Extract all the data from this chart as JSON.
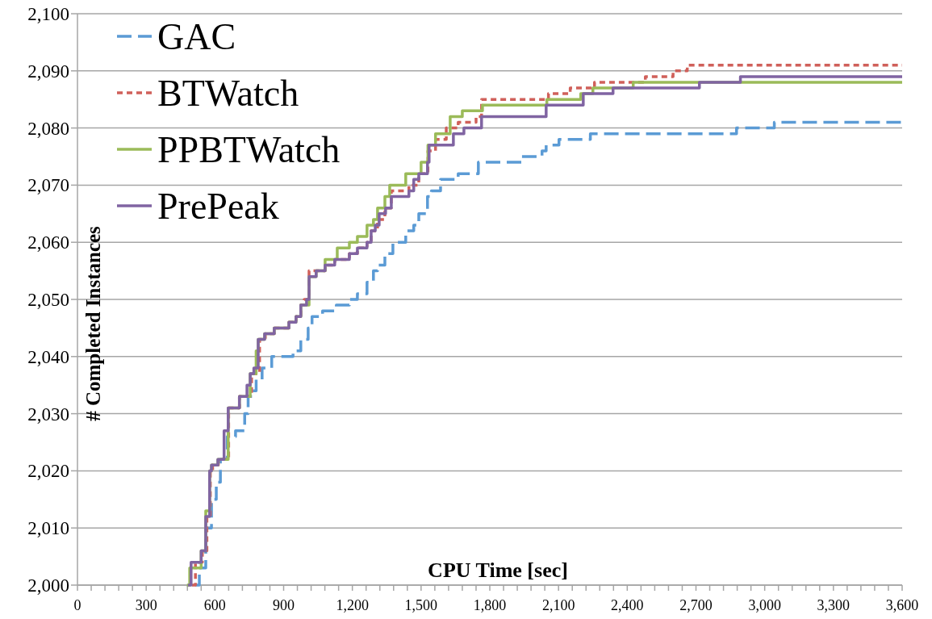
{
  "chart_data": {
    "type": "step",
    "xlabel": "CPU Time [sec]",
    "ylabel": "# Completed Instances",
    "xlim": [
      0,
      3600
    ],
    "ylim": [
      2000,
      2100
    ],
    "xticks": [
      {
        "value": 0,
        "label": "0"
      },
      {
        "value": 60,
        "label": null
      },
      {
        "value": 120,
        "label": null
      },
      {
        "value": 180,
        "label": null
      },
      {
        "value": 240,
        "label": null
      },
      {
        "value": 300,
        "label": "300"
      },
      {
        "value": 360,
        "label": null
      },
      {
        "value": 420,
        "label": null
      },
      {
        "value": 480,
        "label": null
      },
      {
        "value": 540,
        "label": null
      },
      {
        "value": 600,
        "label": "600"
      },
      {
        "value": 660,
        "label": null
      },
      {
        "value": 720,
        "label": null
      },
      {
        "value": 780,
        "label": null
      },
      {
        "value": 840,
        "label": null
      },
      {
        "value": 900,
        "label": "900"
      },
      {
        "value": 960,
        "label": null
      },
      {
        "value": 1020,
        "label": null
      },
      {
        "value": 1080,
        "label": null
      },
      {
        "value": 1140,
        "label": null
      },
      {
        "value": 1200,
        "label": "1,200"
      },
      {
        "value": 1260,
        "label": null
      },
      {
        "value": 1320,
        "label": null
      },
      {
        "value": 1380,
        "label": null
      },
      {
        "value": 1440,
        "label": null
      },
      {
        "value": 1500,
        "label": "1,500"
      },
      {
        "value": 1560,
        "label": null
      },
      {
        "value": 1620,
        "label": null
      },
      {
        "value": 1680,
        "label": null
      },
      {
        "value": 1740,
        "label": null
      },
      {
        "value": 1800,
        "label": "1,800"
      },
      {
        "value": 1860,
        "label": null
      },
      {
        "value": 1920,
        "label": null
      },
      {
        "value": 1980,
        "label": null
      },
      {
        "value": 2040,
        "label": null
      },
      {
        "value": 2100,
        "label": "2,100"
      },
      {
        "value": 2160,
        "label": null
      },
      {
        "value": 2220,
        "label": null
      },
      {
        "value": 2280,
        "label": null
      },
      {
        "value": 2340,
        "label": null
      },
      {
        "value": 2400,
        "label": "2,400"
      },
      {
        "value": 2460,
        "label": null
      },
      {
        "value": 2520,
        "label": null
      },
      {
        "value": 2580,
        "label": null
      },
      {
        "value": 2640,
        "label": null
      },
      {
        "value": 2700,
        "label": "2,700"
      },
      {
        "value": 2760,
        "label": null
      },
      {
        "value": 2820,
        "label": null
      },
      {
        "value": 2880,
        "label": null
      },
      {
        "value": 2940,
        "label": null
      },
      {
        "value": 3000,
        "label": "3,000"
      },
      {
        "value": 3060,
        "label": null
      },
      {
        "value": 3120,
        "label": null
      },
      {
        "value": 3180,
        "label": null
      },
      {
        "value": 3240,
        "label": null
      },
      {
        "value": 3300,
        "label": "3,300"
      },
      {
        "value": 3360,
        "label": null
      },
      {
        "value": 3420,
        "label": null
      },
      {
        "value": 3480,
        "label": null
      },
      {
        "value": 3540,
        "label": null
      },
      {
        "value": 3600,
        "label": "3,600"
      }
    ],
    "yticks": [
      {
        "value": 2000,
        "label": "2,000"
      },
      {
        "value": 2010,
        "label": "2,010"
      },
      {
        "value": 2020,
        "label": "2,020"
      },
      {
        "value": 2030,
        "label": "2,030"
      },
      {
        "value": 2040,
        "label": "2,040"
      },
      {
        "value": 2050,
        "label": "2,050"
      },
      {
        "value": 2060,
        "label": "2,060"
      },
      {
        "value": 2070,
        "label": "2,070"
      },
      {
        "value": 2080,
        "label": "2,080"
      },
      {
        "value": 2090,
        "label": "2,090"
      },
      {
        "value": 2100,
        "label": "2,100"
      }
    ],
    "grid": "y",
    "legend": "top left",
    "marker": "none",
    "series": [
      {
        "name": "GAC",
        "color": "#5b9bd5",
        "line_style": "dashed",
        "x": [
          514,
          532,
          560,
          585,
          606,
          624,
          654,
          690,
          730,
          745,
          765,
          780,
          806,
          848,
          941,
          975,
          1007,
          1024,
          1070,
          1130,
          1187,
          1222,
          1264,
          1292,
          1310,
          1342,
          1377,
          1433,
          1468,
          1490,
          1528,
          1545,
          1585,
          1662,
          1750,
          1940,
          2028,
          2046,
          2102,
          2239,
          2877,
          3042,
          3600
        ],
        "values": [
          2000,
          2003,
          2010,
          2015,
          2018,
          2022,
          2026,
          2027,
          2030,
          2033,
          2034,
          2036,
          2038,
          2040,
          2041,
          2043,
          2045,
          2047,
          2048,
          2049,
          2050,
          2051,
          2053,
          2055,
          2056,
          2058,
          2060,
          2062,
          2063,
          2065,
          2068,
          2069,
          2071,
          2072,
          2074,
          2075,
          2076,
          2077,
          2078,
          2079,
          2080,
          2081,
          2081
        ]
      },
      {
        "name": "BTWatch",
        "color": "#d0605a",
        "line_style": "dotted",
        "x": [
          500,
          515,
          545,
          565,
          580,
          590,
          615,
          660,
          707,
          760,
          795,
          820,
          859,
          923,
          954,
          975,
          990,
          1011,
          1081,
          1123,
          1187,
          1222,
          1264,
          1282,
          1310,
          1342,
          1370,
          1447,
          1490,
          1530,
          1563,
          1610,
          1662,
          1740,
          1764,
          2056,
          2151,
          2257,
          2479,
          2600,
          2662,
          3600
        ],
        "values": [
          2000,
          2004,
          2006,
          2012,
          2020,
          2021,
          2022,
          2031,
          2033,
          2037,
          2043,
          2044,
          2045,
          2046,
          2047,
          2049,
          2050,
          2055,
          2056,
          2057,
          2058,
          2059,
          2060,
          2062,
          2064,
          2066,
          2069,
          2070,
          2072,
          2076,
          2078,
          2080,
          2081,
          2082,
          2085,
          2086,
          2087,
          2088,
          2089,
          2090,
          2091,
          2091
        ]
      },
      {
        "name": "PPBTWatch",
        "color": "#9bbb59",
        "line_style": "solid",
        "x": [
          478,
          490,
          540,
          560,
          577,
          585,
          613,
          658,
          707,
          754,
          780,
          789,
          817,
          859,
          923,
          954,
          975,
          1011,
          1042,
          1081,
          1134,
          1187,
          1222,
          1264,
          1292,
          1310,
          1342,
          1363,
          1433,
          1500,
          1530,
          1563,
          1627,
          1680,
          1768,
          2049,
          2197,
          2250,
          2426,
          3600
        ],
        "values": [
          2000,
          2003,
          2006,
          2013,
          2020,
          2021,
          2022,
          2031,
          2033,
          2037,
          2041,
          2043,
          2044,
          2045,
          2046,
          2047,
          2049,
          2054,
          2055,
          2057,
          2059,
          2060,
          2061,
          2063,
          2064,
          2066,
          2068,
          2070,
          2072,
          2074,
          2077,
          2079,
          2082,
          2083,
          2084,
          2085,
          2086,
          2087,
          2088,
          2088
        ]
      },
      {
        "name": "PrePeak",
        "color": "#8064a2",
        "line_style": "solid",
        "x": [
          482,
          496,
          540,
          560,
          577,
          585,
          613,
          640,
          658,
          707,
          740,
          754,
          770,
          789,
          817,
          859,
          923,
          954,
          975,
          1000,
          1011,
          1042,
          1081,
          1123,
          1187,
          1222,
          1264,
          1282,
          1300,
          1317,
          1345,
          1370,
          1447,
          1468,
          1490,
          1528,
          1535,
          1641,
          1687,
          1764,
          2046,
          2208,
          2338,
          2715,
          2894,
          3600
        ],
        "values": [
          2000,
          2004,
          2006,
          2012,
          2020,
          2021,
          2022,
          2027,
          2031,
          2033,
          2035,
          2037,
          2038,
          2043,
          2044,
          2045,
          2046,
          2047,
          2049,
          2050,
          2054,
          2055,
          2056,
          2057,
          2058,
          2059,
          2060,
          2062,
          2063,
          2065,
          2066,
          2068,
          2069,
          2071,
          2072,
          2074,
          2077,
          2079,
          2080,
          2082,
          2084,
          2086,
          2087,
          2088,
          2089,
          2089
        ]
      }
    ]
  }
}
